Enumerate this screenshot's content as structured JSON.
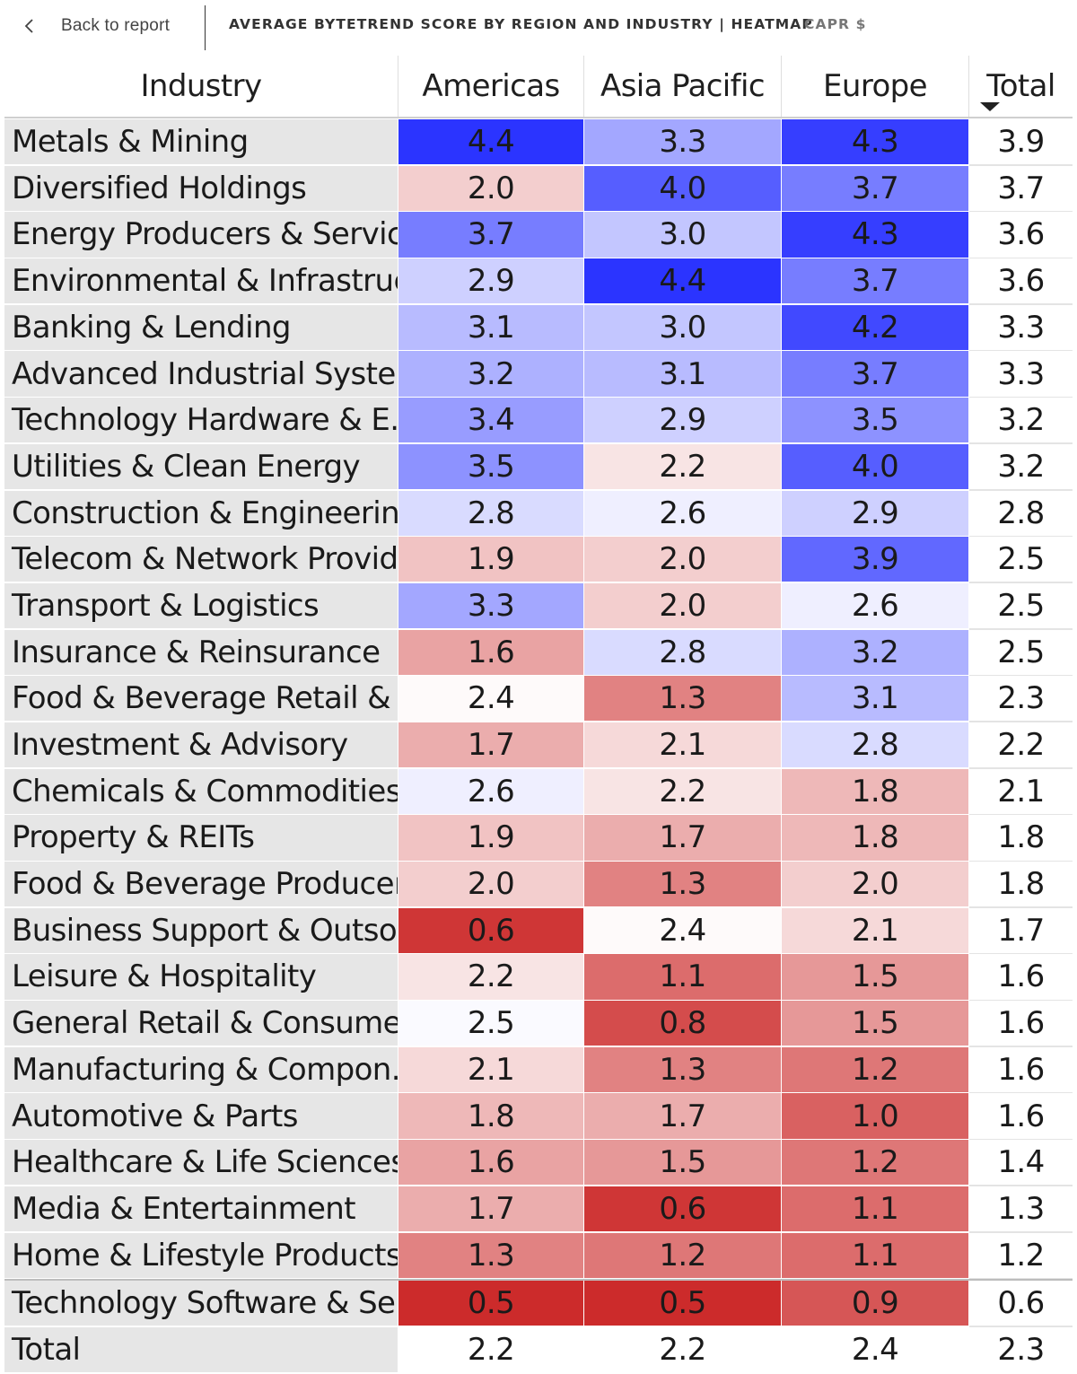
{
  "header": {
    "back_label": "Back to report",
    "title": "AVERAGE BYTETREND SCORE BY REGION AND INDUSTRY | HEATMAP",
    "subtitle": "CAPR $"
  },
  "table": {
    "columns": [
      "Industry",
      "Americas",
      "Asia Pacific",
      "Europe",
      "Total"
    ],
    "sort_column": "Total",
    "sort_direction": "descending",
    "colors": {
      "high": "#2b34ff",
      "mid": "#ffffff",
      "low": "#cc2b2b",
      "label_bg": "#e6e6e6"
    },
    "rows": [
      {
        "industry": "Metals & Mining",
        "values": [
          "4.4",
          "3.3",
          "4.3"
        ],
        "total": "3.9"
      },
      {
        "industry": "Diversified Holdings",
        "values": [
          "2.0",
          "4.0",
          "3.7"
        ],
        "total": "3.7"
      },
      {
        "industry": "Energy Producers & Servic...",
        "values": [
          "3.7",
          "3.0",
          "4.3"
        ],
        "total": "3.6"
      },
      {
        "industry": "Environmental & Infrastruc...",
        "values": [
          "2.9",
          "4.4",
          "3.7"
        ],
        "total": "3.6"
      },
      {
        "industry": "Banking & Lending",
        "values": [
          "3.1",
          "3.0",
          "4.2"
        ],
        "total": "3.3"
      },
      {
        "industry": "Advanced Industrial Systems",
        "values": [
          "3.2",
          "3.1",
          "3.7"
        ],
        "total": "3.3"
      },
      {
        "industry": "Technology Hardware & E...",
        "values": [
          "3.4",
          "2.9",
          "3.5"
        ],
        "total": "3.2"
      },
      {
        "industry": "Utilities & Clean Energy",
        "values": [
          "3.5",
          "2.2",
          "4.0"
        ],
        "total": "3.2"
      },
      {
        "industry": "Construction & Engineering",
        "values": [
          "2.8",
          "2.6",
          "2.9"
        ],
        "total": "2.8"
      },
      {
        "industry": "Telecom & Network Provid...",
        "values": [
          "1.9",
          "2.0",
          "3.9"
        ],
        "total": "2.5"
      },
      {
        "industry": "Transport & Logistics",
        "values": [
          "3.3",
          "2.0",
          "2.6"
        ],
        "total": "2.5"
      },
      {
        "industry": "Insurance & Reinsurance",
        "values": [
          "1.6",
          "2.8",
          "3.2"
        ],
        "total": "2.5"
      },
      {
        "industry": "Food & Beverage Retail & ...",
        "values": [
          "2.4",
          "1.3",
          "3.1"
        ],
        "total": "2.3"
      },
      {
        "industry": "Investment & Advisory",
        "values": [
          "1.7",
          "2.1",
          "2.8"
        ],
        "total": "2.2"
      },
      {
        "industry": "Chemicals & Commodities",
        "values": [
          "2.6",
          "2.2",
          "1.8"
        ],
        "total": "2.1"
      },
      {
        "industry": "Property & REITs",
        "values": [
          "1.9",
          "1.7",
          "1.8"
        ],
        "total": "1.8"
      },
      {
        "industry": "Food & Beverage Producers",
        "values": [
          "2.0",
          "1.3",
          "2.0"
        ],
        "total": "1.8"
      },
      {
        "industry": "Business Support & Outso...",
        "values": [
          "0.6",
          "2.4",
          "2.1"
        ],
        "total": "1.7"
      },
      {
        "industry": "Leisure & Hospitality",
        "values": [
          "2.2",
          "1.1",
          "1.5"
        ],
        "total": "1.6"
      },
      {
        "industry": "General Retail & Consume...",
        "values": [
          "2.5",
          "0.8",
          "1.5"
        ],
        "total": "1.6"
      },
      {
        "industry": "Manufacturing & Compon...",
        "values": [
          "2.1",
          "1.3",
          "1.2"
        ],
        "total": "1.6"
      },
      {
        "industry": "Automotive & Parts",
        "values": [
          "1.8",
          "1.7",
          "1.0"
        ],
        "total": "1.6"
      },
      {
        "industry": "Healthcare & Life Sciences",
        "values": [
          "1.6",
          "1.5",
          "1.2"
        ],
        "total": "1.4"
      },
      {
        "industry": "Media & Entertainment",
        "values": [
          "1.7",
          "0.6",
          "1.1"
        ],
        "total": "1.3"
      },
      {
        "industry": "Home & Lifestyle Products",
        "values": [
          "1.3",
          "1.2",
          "1.1"
        ],
        "total": "1.2"
      },
      {
        "industry": "Technology Software & Se...",
        "values": [
          "0.5",
          "0.5",
          "0.9"
        ],
        "total": "0.6"
      }
    ],
    "total_row": {
      "industry": "Total",
      "values": [
        "2.2",
        "2.2",
        "2.4"
      ],
      "total": "2.3"
    }
  }
}
